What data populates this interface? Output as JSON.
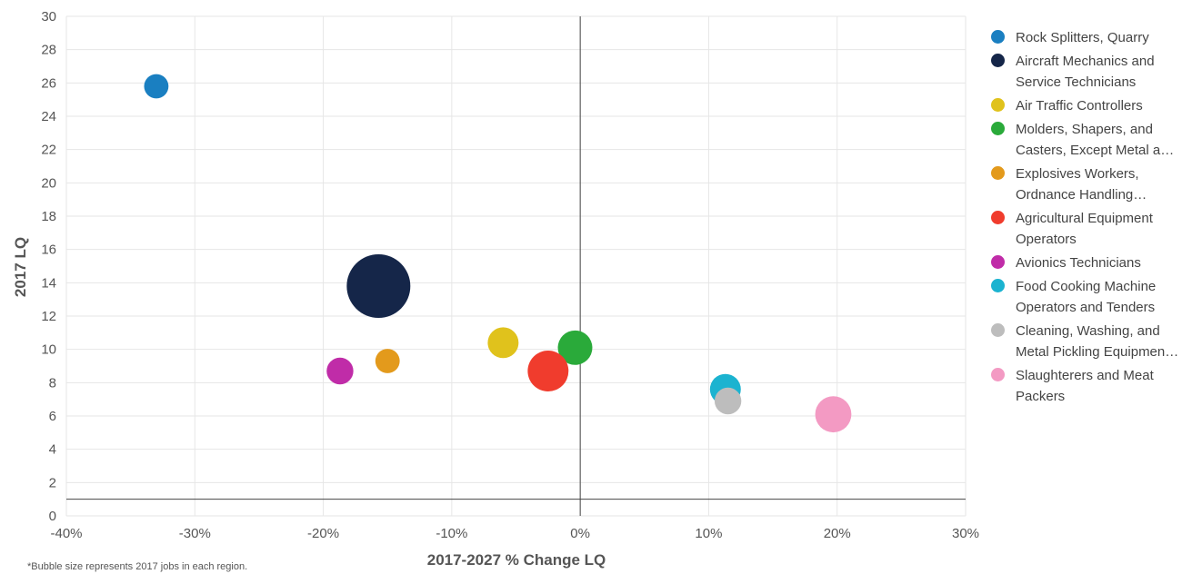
{
  "chart_data": {
    "type": "scatter",
    "xlabel": "2017-2027 % Change LQ",
    "ylabel": "2017 LQ",
    "xlim": [
      -40,
      30
    ],
    "ylim": [
      0,
      30
    ],
    "x_ticks": [
      -40,
      -30,
      -20,
      -10,
      0,
      10,
      20,
      30
    ],
    "x_tick_labels": [
      "-40%",
      "-30%",
      "-20%",
      "-10%",
      "0%",
      "10%",
      "20%",
      "30%"
    ],
    "y_ticks": [
      0,
      2,
      4,
      6,
      8,
      10,
      12,
      14,
      16,
      18,
      20,
      22,
      24,
      26,
      28,
      30
    ],
    "y_tick_labels": [
      "0",
      "2",
      "4",
      "6",
      "8",
      "10",
      "12",
      "14",
      "16",
      "18",
      "20",
      "22",
      "24",
      "26",
      "28",
      "30"
    ],
    "reference_lines": {
      "x": 0,
      "y": 1
    },
    "grid": true,
    "legend_position": "right",
    "footnote": "*Bubble size represents 2017 jobs in each region.",
    "series": [
      {
        "name": "Rock Splitters, Quarry",
        "x": -33.0,
        "y": 25.8,
        "size": 5,
        "color": "#1a7fc1"
      },
      {
        "name": "Aircraft Mechanics and Service Technicians",
        "x": -15.7,
        "y": 13.8,
        "size": 34,
        "color": "#152649"
      },
      {
        "name": "Air Traffic Controllers",
        "x": -6.0,
        "y": 10.4,
        "size": 8,
        "color": "#e0c21c"
      },
      {
        "name": "Molders, Shapers, and Casters, Except Metal and Plastic",
        "x": -0.4,
        "y": 10.1,
        "size": 10,
        "color": "#2aaa3a"
      },
      {
        "name": "Explosives Workers, Ordnance Handling Experts, and Blasters",
        "x": -15.0,
        "y": 9.3,
        "size": 5,
        "color": "#e39a1c"
      },
      {
        "name": "Agricultural Equipment Operators",
        "x": -2.5,
        "y": 8.7,
        "size": 14,
        "color": "#f03c2d"
      },
      {
        "name": "Avionics Technicians",
        "x": -18.7,
        "y": 8.7,
        "size": 6,
        "color": "#c02ca8"
      },
      {
        "name": "Food Cooking Machine Operators and Tenders",
        "x": 11.3,
        "y": 7.6,
        "size": 8,
        "color": "#1bb3d0"
      },
      {
        "name": "Cleaning, Washing, and Metal Pickling Equipment Operators and Tenders",
        "x": 11.5,
        "y": 6.9,
        "size": 6,
        "color": "#bdbdbd"
      },
      {
        "name": "Slaughterers and Meat Packers",
        "x": 19.7,
        "y": 6.1,
        "size": 11,
        "color": "#f39ac3"
      }
    ]
  }
}
